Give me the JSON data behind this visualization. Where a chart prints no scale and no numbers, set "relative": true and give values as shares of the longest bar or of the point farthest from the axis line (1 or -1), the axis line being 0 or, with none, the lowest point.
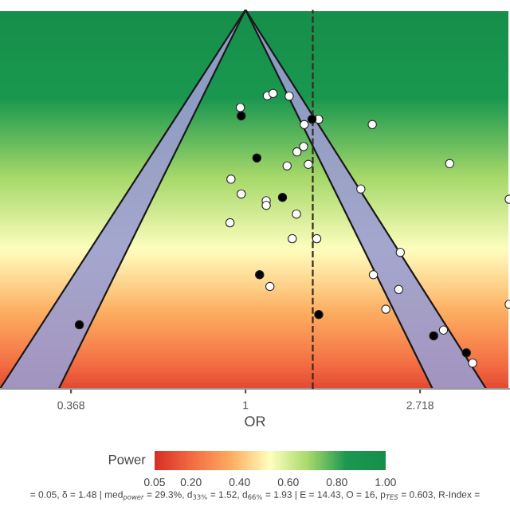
{
  "chart_data": {
    "type": "scatter",
    "relative": true,
    "log": "x",
    "xlabel": "OR",
    "clabel": "Power",
    "xlim": [
      0.245,
      4.55
    ],
    "xticks": [
      {
        "value": 0.368,
        "label": "0.368"
      },
      1,
      {
        "value": 2.718,
        "label": "2.718"
      }
    ],
    "tick_labels": "x",
    "grid": false,
    "marker": "circle",
    "clim": [
      0.05,
      1.0
    ],
    "cticks": [
      {
        "value": 0.05,
        "label": "0.05"
      },
      {
        "value": 0.2,
        "label": "0.20"
      },
      {
        "value": 0.4,
        "label": "0.40"
      },
      {
        "value": 0.6,
        "label": "0.60"
      },
      {
        "value": 0.8,
        "label": "0.80"
      },
      {
        "value": 1.0,
        "label": "1.00"
      }
    ],
    "ref_lines": [
      {
        "axis": "x",
        "value": 1.47,
        "color": "#3a2a20",
        "line_style": "dashed"
      }
    ],
    "annotations": [
      "= 0.05, δ = 1.48 | med$_{power}$ = 29.3%, d$_{33%}$ = 1.52, d$_{66%}$ = 1.93 | E = 14.43, O = 16, p$_{TES}$ = 0.603, R-Index ="
    ],
    "series": [
      {
        "type": "line",
        "marker": "none",
        "color": "#1a1a1a",
        "x": [
          0.245,
          1
        ],
        "values": [
          0.0,
          1.0
        ]
      },
      {
        "type": "line",
        "marker": "none",
        "color": "#1a1a1a",
        "x": [
          0.343,
          1
        ],
        "values": [
          0.0,
          1.0
        ]
      },
      {
        "type": "line",
        "marker": "none",
        "color": "#1a1a1a",
        "x": [
          2.92,
          1
        ],
        "values": [
          0.0,
          1.0
        ]
      },
      {
        "type": "line",
        "marker": "none",
        "color": "#1a1a1a",
        "x": [
          3.97,
          1
        ],
        "values": [
          0.0,
          1.0
        ]
      },
      {
        "color": "#ffffff",
        "x": [
          0.971,
          1.133,
          1.171,
          1.284,
          1.521,
          1.4,
          2.067,
          1.395,
          1.343,
          1.269,
          1.433,
          3.22,
          0.92,
          0.976,
          1.936,
          1.126,
          1.126,
          4.53,
          1.339,
          0.915,
          1.307,
          1.504,
          2.427,
          1.15,
          2.08,
          2.405,
          2.234,
          4.53,
          3.108,
          3.673
        ],
        "values": [
          0.742,
          0.773,
          0.779,
          0.772,
          0.711,
          0.697,
          0.697,
          0.639,
          0.625,
          0.588,
          0.592,
          0.594,
          0.553,
          0.514,
          0.527,
          0.496,
          0.484,
          0.5,
          0.461,
          0.438,
          0.396,
          0.396,
          0.36,
          0.27,
          0.301,
          0.262,
          0.21,
          0.223,
          0.155,
          0.068
        ]
      },
      {
        "color": "#000000",
        "x": [
          0.976,
          1.464,
          1.067,
          1.236,
          1.084,
          1.521,
          0.386,
          2.938,
          3.544
        ],
        "values": [
          0.72,
          0.711,
          0.609,
          0.505,
          0.301,
          0.196,
          0.169,
          0.14,
          0.095
        ]
      }
    ]
  }
}
